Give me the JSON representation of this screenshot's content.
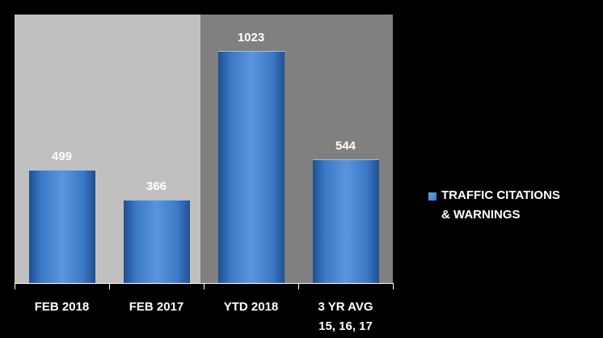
{
  "chart_data": {
    "type": "bar",
    "categories": [
      "FEB 2018",
      "FEB 2017",
      "YTD 2018",
      "3 YR AVG\n15, 16, 17"
    ],
    "series": [
      {
        "name": "TRAFFIC CITATIONS\n& WARNINGS",
        "color": "#3b78c6",
        "values": [
          499,
          366,
          1023,
          544
        ]
      }
    ],
    "ylim": [
      0,
      1183
    ],
    "legend": "right"
  }
}
